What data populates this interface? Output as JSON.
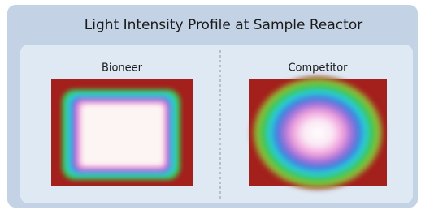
{
  "header": {
    "title": "Light Intensity Profile at Sample Reactor"
  },
  "panels": [
    {
      "label": "Bioneer"
    },
    {
      "label": "Competitor"
    }
  ]
}
